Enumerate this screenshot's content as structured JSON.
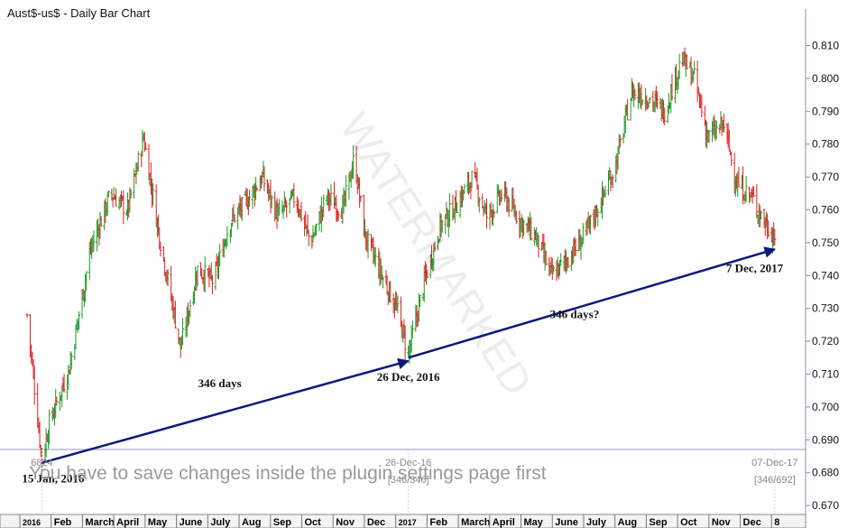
{
  "title": "Aust$-us$ - Daily Bar Chart",
  "watermark": "WATERMARKED",
  "overlay_text": "You have to save changes inside the plugin settings page first",
  "chart_data": {
    "type": "bar",
    "ylim": [
      0.665,
      0.815
    ],
    "y_ticks": [
      "0.810",
      "0.800",
      "0.790",
      "0.780",
      "0.770",
      "0.760",
      "0.750",
      "0.740",
      "0.730",
      "0.720",
      "0.710",
      "0.700",
      "0.690",
      "0.680",
      "0.670"
    ],
    "x_labels": [
      "2016",
      "Feb",
      "March",
      "April",
      "May",
      "June",
      "July",
      "Aug",
      "Sep",
      "Oct",
      "Nov",
      "Dec",
      "2017",
      "Feb",
      "March",
      "April",
      "May",
      "June",
      "July",
      "Aug",
      "Sep",
      "Oct",
      "Nov",
      "Dec",
      "8"
    ],
    "series": [
      {
        "values": [
          {
            "date": "2016-01-01",
            "price": 0.728
          },
          {
            "date": "2016-01-15",
            "price": 0.684
          },
          {
            "date": "2016-01-22",
            "price": 0.695
          },
          {
            "date": "2016-02-10",
            "price": 0.712
          },
          {
            "date": "2016-03-01",
            "price": 0.748
          },
          {
            "date": "2016-03-20",
            "price": 0.765
          },
          {
            "date": "2016-04-05",
            "price": 0.76
          },
          {
            "date": "2016-04-20",
            "price": 0.782
          },
          {
            "date": "2016-05-05",
            "price": 0.752
          },
          {
            "date": "2016-05-25",
            "price": 0.718
          },
          {
            "date": "2016-06-10",
            "price": 0.742
          },
          {
            "date": "2016-06-25",
            "price": 0.738
          },
          {
            "date": "2016-07-10",
            "price": 0.756
          },
          {
            "date": "2016-07-25",
            "price": 0.762
          },
          {
            "date": "2016-08-10",
            "price": 0.77
          },
          {
            "date": "2016-08-25",
            "price": 0.758
          },
          {
            "date": "2016-09-10",
            "price": 0.764
          },
          {
            "date": "2016-09-25",
            "price": 0.75
          },
          {
            "date": "2016-10-10",
            "price": 0.764
          },
          {
            "date": "2016-10-25",
            "price": 0.76
          },
          {
            "date": "2016-11-05",
            "price": 0.776
          },
          {
            "date": "2016-11-15",
            "price": 0.752
          },
          {
            "date": "2016-12-01",
            "price": 0.74
          },
          {
            "date": "2016-12-15",
            "price": 0.73
          },
          {
            "date": "2016-12-26",
            "price": 0.716
          },
          {
            "date": "2017-01-10",
            "price": 0.738
          },
          {
            "date": "2017-01-25",
            "price": 0.755
          },
          {
            "date": "2017-02-10",
            "price": 0.762
          },
          {
            "date": "2017-02-25",
            "price": 0.77
          },
          {
            "date": "2017-03-10",
            "price": 0.758
          },
          {
            "date": "2017-03-25",
            "price": 0.765
          },
          {
            "date": "2017-04-10",
            "price": 0.757
          },
          {
            "date": "2017-04-25",
            "price": 0.752
          },
          {
            "date": "2017-05-10",
            "price": 0.74
          },
          {
            "date": "2017-05-25",
            "price": 0.745
          },
          {
            "date": "2017-06-10",
            "price": 0.752
          },
          {
            "date": "2017-06-25",
            "price": 0.762
          },
          {
            "date": "2017-07-10",
            "price": 0.774
          },
          {
            "date": "2017-07-25",
            "price": 0.796
          },
          {
            "date": "2017-08-10",
            "price": 0.794
          },
          {
            "date": "2017-08-25",
            "price": 0.79
          },
          {
            "date": "2017-09-10",
            "price": 0.806
          },
          {
            "date": "2017-09-22",
            "price": 0.8
          },
          {
            "date": "2017-10-05",
            "price": 0.782
          },
          {
            "date": "2017-10-20",
            "price": 0.786
          },
          {
            "date": "2017-11-01",
            "price": 0.768
          },
          {
            "date": "2017-11-15",
            "price": 0.764
          },
          {
            "date": "2017-11-28",
            "price": 0.756
          },
          {
            "date": "2017-12-07",
            "price": 0.752
          }
        ]
      }
    ],
    "trend_lines": [
      {
        "from_date": "2016-01-15",
        "from_price": 0.683,
        "to_date": "2016-12-26",
        "to_price": 0.714
      },
      {
        "from_date": "2016-12-26",
        "from_price": 0.715,
        "to_date": "2017-12-07",
        "to_price": 0.748
      }
    ],
    "annotations": [
      {
        "text": "346 days",
        "date": "2016-07-01",
        "price": 0.706
      },
      {
        "text": "26 Dec, 2016",
        "date": "2016-12-26",
        "price": 0.708
      },
      {
        "text": "346 days?",
        "date": "2017-06-01",
        "price": 0.727
      },
      {
        "text": "7 Dec, 2017",
        "date": "2017-11-18",
        "price": 0.741
      },
      {
        "text": "15 Jan, 2016",
        "date": "2016-01-15",
        "price": 0.677
      }
    ],
    "bottom_marks": [
      {
        "label": "6824",
        "date": "2016-01-15"
      },
      {
        "label": "26-Dec-16",
        "sub": "[346/346]",
        "date": "2016-12-26"
      },
      {
        "label": "07-Dec-17",
        "sub": "[346/692]",
        "date": "2017-12-07"
      }
    ],
    "colors": {
      "up": "#1e9a28",
      "down": "#e02020",
      "trend": "#0a1a7a",
      "axis": "#8a8fa6"
    }
  }
}
